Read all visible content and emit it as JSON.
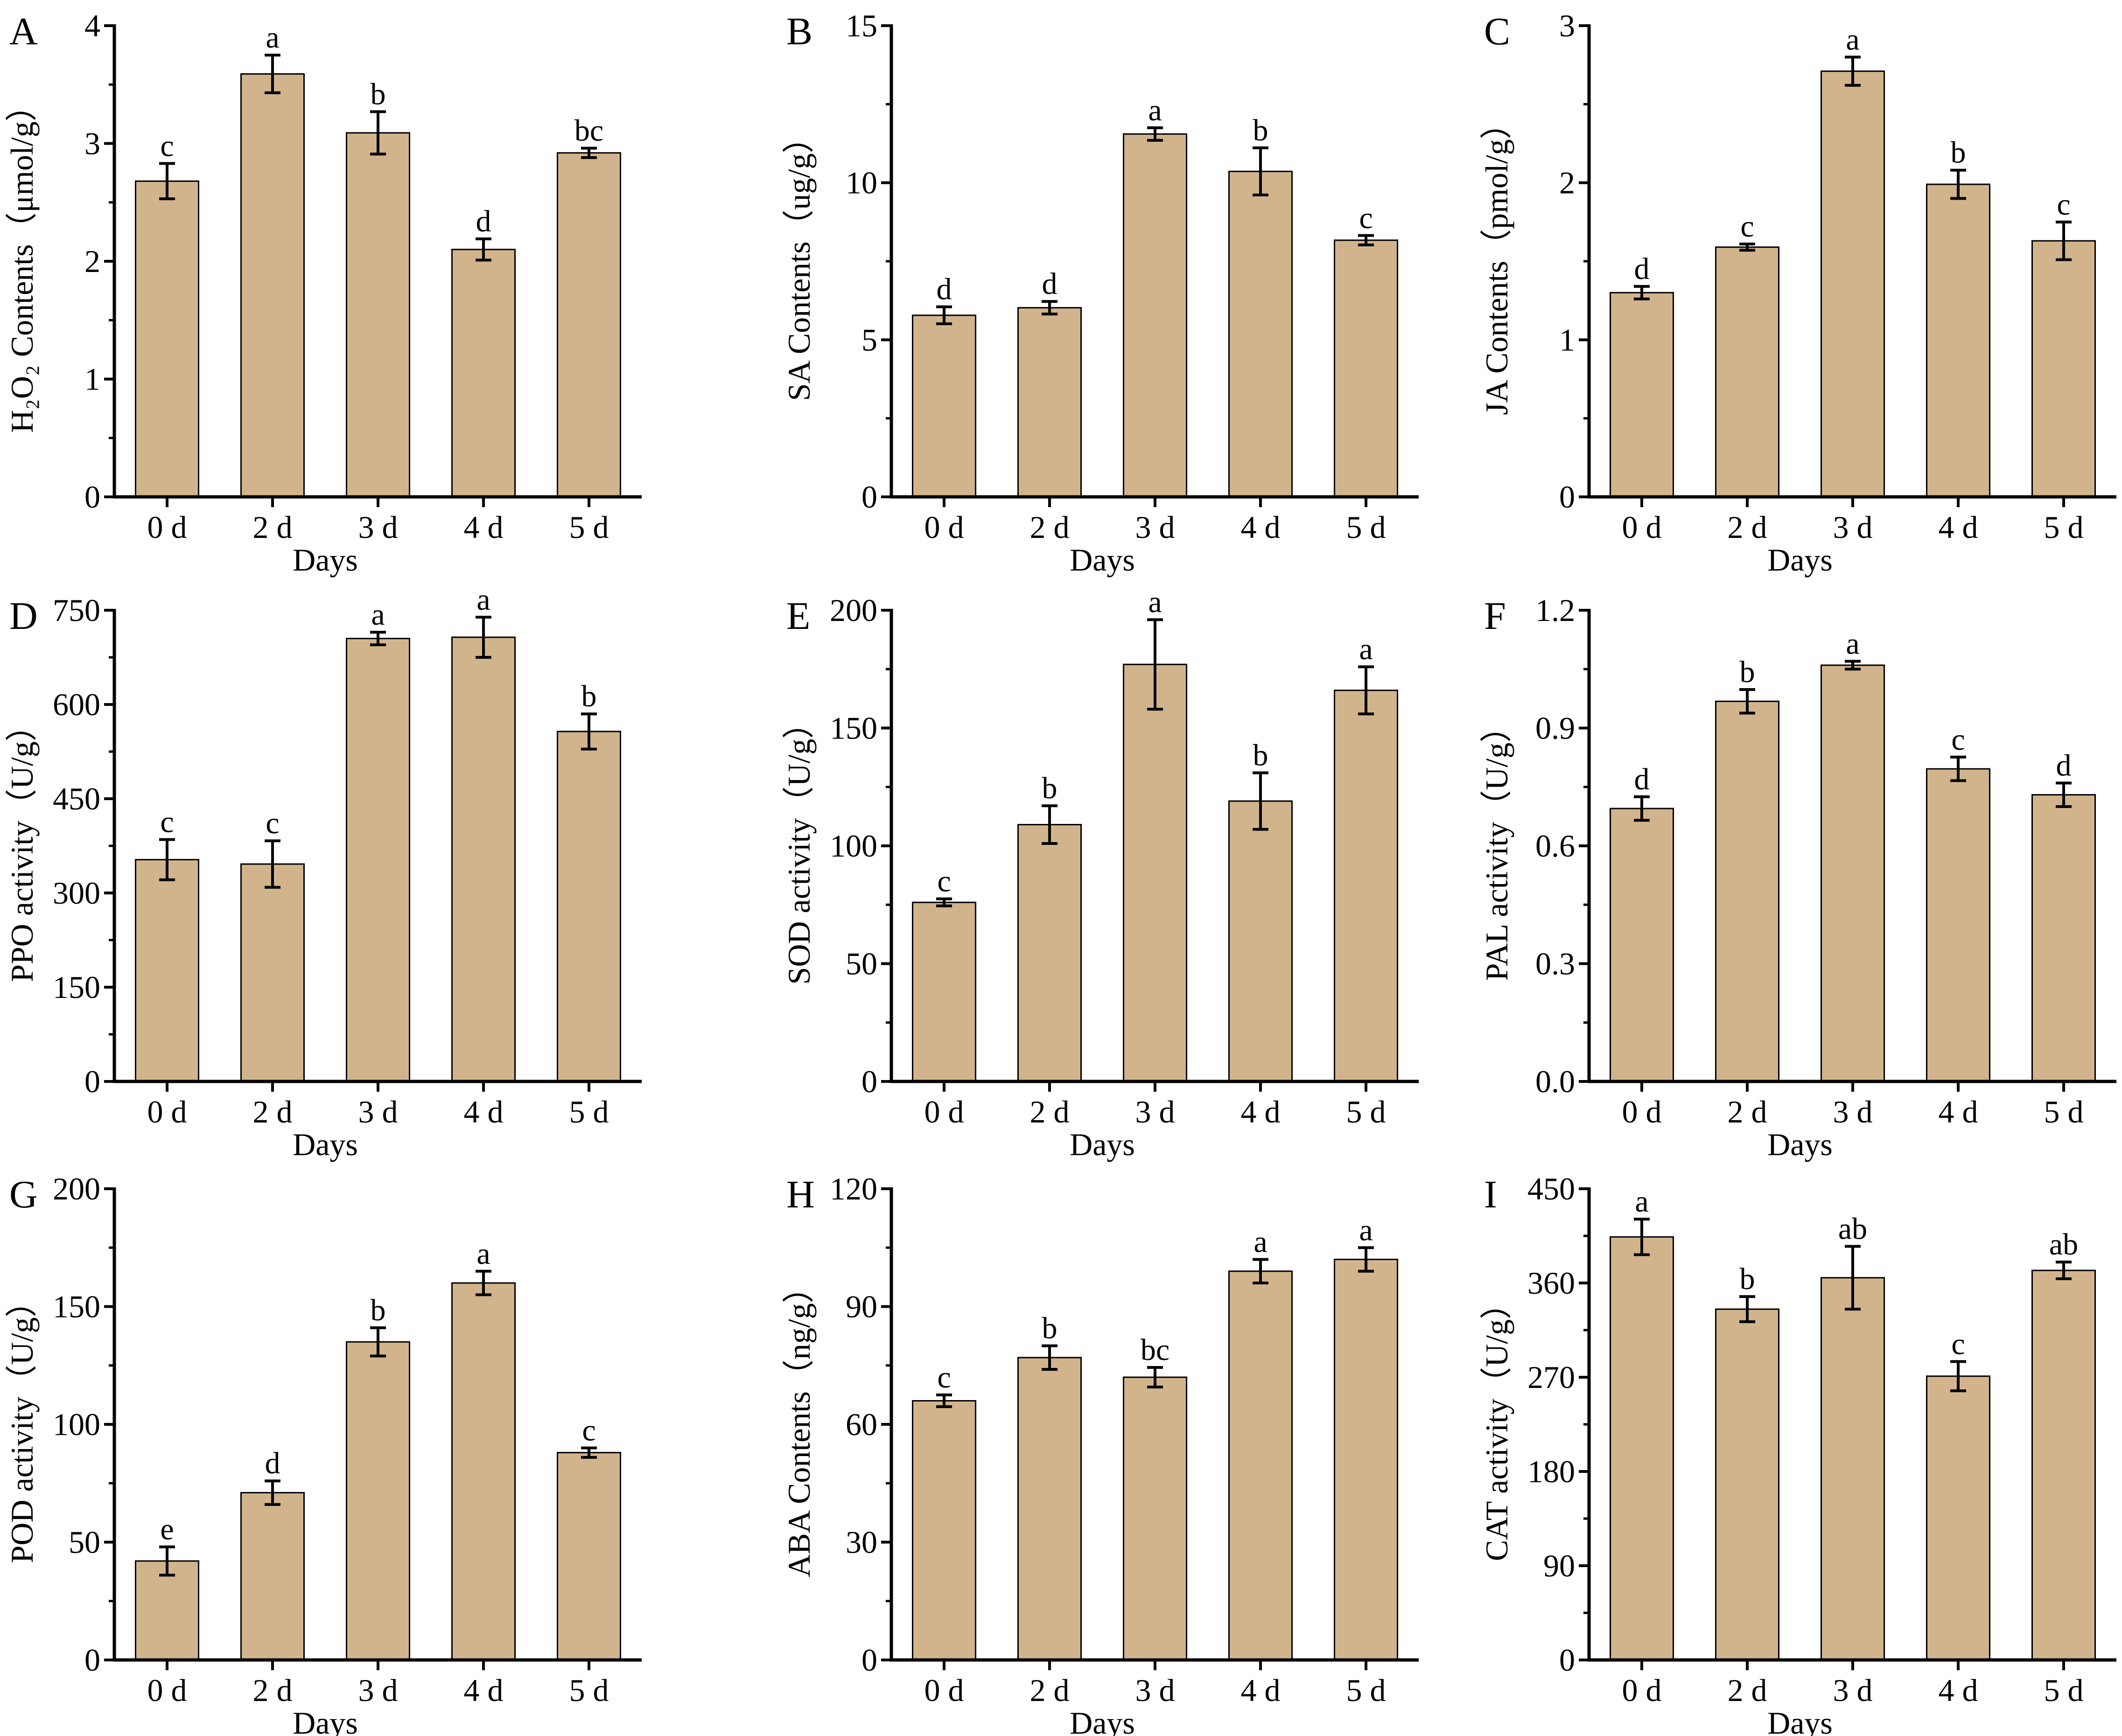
{
  "figure": {
    "bar_color": "#d2b48c",
    "edge_color": "#000000",
    "xlabel": "Days",
    "categories": [
      "0 d",
      "2 d",
      "3 d",
      "4 d",
      "5 d"
    ]
  },
  "chart_data": [
    {
      "panel": "A",
      "type": "bar",
      "ylabel": "H₂O₂ Contents（μmol/g）",
      "xlabel": "Days",
      "categories": [
        "0 d",
        "2 d",
        "3 d",
        "4 d",
        "5 d"
      ],
      "values": [
        2.68,
        3.59,
        3.09,
        2.1,
        2.92
      ],
      "errors": [
        0.15,
        0.16,
        0.18,
        0.09,
        0.04
      ],
      "labels": [
        "c",
        "a",
        "b",
        "d",
        "bc"
      ],
      "ylim": [
        0,
        4
      ],
      "yticks": [
        "0",
        "1",
        "2",
        "3",
        "4"
      ]
    },
    {
      "panel": "B",
      "type": "bar",
      "ylabel": "SA Contents（ug/g）",
      "xlabel": "Days",
      "categories": [
        "0 d",
        "2 d",
        "3 d",
        "4 d",
        "5 d"
      ],
      "values": [
        5.78,
        6.02,
        11.55,
        10.36,
        8.17
      ],
      "errors": [
        0.27,
        0.2,
        0.2,
        0.75,
        0.15
      ],
      "labels": [
        "d",
        "d",
        "a",
        "b",
        "c"
      ],
      "ylim": [
        0,
        15
      ],
      "yticks": [
        "0",
        "5",
        "10",
        "15"
      ]
    },
    {
      "panel": "C",
      "type": "bar",
      "ylabel": "JA Contents（pmol/g）",
      "xlabel": "Days",
      "categories": [
        "0 d",
        "2 d",
        "3 d",
        "4 d",
        "5 d"
      ],
      "values": [
        1.3,
        1.59,
        2.71,
        1.99,
        1.63
      ],
      "errors": [
        0.04,
        0.02,
        0.09,
        0.09,
        0.12
      ],
      "labels": [
        "d",
        "c",
        "a",
        "b",
        "c"
      ],
      "ylim": [
        0,
        3
      ],
      "yticks": [
        "0",
        "1",
        "2",
        "3"
      ]
    },
    {
      "panel": "D",
      "type": "bar",
      "ylabel": "PPO activity（U/g）",
      "xlabel": "Days",
      "categories": [
        "0 d",
        "2 d",
        "3 d",
        "4 d",
        "5 d"
      ],
      "values": [
        353,
        346,
        705,
        707,
        557
      ],
      "errors": [
        32,
        37,
        10,
        32,
        28
      ],
      "labels": [
        "c",
        "c",
        "a",
        "a",
        "b"
      ],
      "ylim": [
        0,
        750
      ],
      "yticks": [
        "0",
        "150",
        "300",
        "450",
        "600",
        "750"
      ]
    },
    {
      "panel": "E",
      "type": "bar",
      "ylabel": "SOD activity（U/g）",
      "xlabel": "Days",
      "categories": [
        "0 d",
        "2 d",
        "3 d",
        "4 d",
        "5 d"
      ],
      "values": [
        76,
        109,
        177,
        119,
        166
      ],
      "errors": [
        1.5,
        8,
        19,
        12,
        10
      ],
      "labels": [
        "c",
        "b",
        "a",
        "b",
        "a"
      ],
      "ylim": [
        0,
        200
      ],
      "yticks": [
        "0",
        "50",
        "100",
        "150",
        "200"
      ]
    },
    {
      "panel": "F",
      "type": "bar",
      "ylabel": "PAL activity（U/g）",
      "xlabel": "Days",
      "categories": [
        "0 d",
        "2 d",
        "3 d",
        "4 d",
        "5 d"
      ],
      "values": [
        0.695,
        0.968,
        1.06,
        0.796,
        0.73
      ],
      "errors": [
        0.03,
        0.03,
        0.01,
        0.03,
        0.03
      ],
      "labels": [
        "d",
        "b",
        "a",
        "c",
        "d"
      ],
      "ylim": [
        0,
        1.2
      ],
      "yticks": [
        "0.0",
        "0.3",
        "0.6",
        "0.9",
        "1.2"
      ]
    },
    {
      "panel": "G",
      "type": "bar",
      "ylabel": "POD activity（U/g）",
      "xlabel": "Days",
      "categories": [
        "0 d",
        "2 d",
        "3 d",
        "4 d",
        "5 d"
      ],
      "values": [
        42,
        71,
        135,
        160,
        88
      ],
      "errors": [
        6,
        5,
        6,
        5,
        2
      ],
      "labels": [
        "e",
        "d",
        "b",
        "a",
        "c"
      ],
      "ylim": [
        0,
        200
      ],
      "yticks": [
        "0",
        "50",
        "100",
        "150",
        "200"
      ]
    },
    {
      "panel": "H",
      "type": "bar",
      "ylabel": "ABA Contents（ng/g）",
      "xlabel": "Days",
      "categories": [
        "0 d",
        "2 d",
        "3 d",
        "4 d",
        "5 d"
      ],
      "values": [
        66,
        77,
        72,
        99,
        102
      ],
      "errors": [
        1.5,
        3,
        2.5,
        3,
        3
      ],
      "labels": [
        "c",
        "b",
        "bc",
        "a",
        "a"
      ],
      "ylim": [
        0,
        120
      ],
      "yticks": [
        "0",
        "30",
        "60",
        "90",
        "120"
      ]
    },
    {
      "panel": "I",
      "type": "bar",
      "ylabel": "CAT activity（U/g）",
      "xlabel": "Days",
      "categories": [
        "0 d",
        "2 d",
        "3 d",
        "4 d",
        "5 d"
      ],
      "values": [
        404,
        335,
        365,
        271,
        372
      ],
      "errors": [
        17,
        12,
        30,
        14,
        8
      ],
      "labels": [
        "a",
        "b",
        "ab",
        "c",
        "ab"
      ],
      "ylim": [
        0,
        450
      ],
      "yticks": [
        "0",
        "90",
        "180",
        "270",
        "360",
        "450"
      ]
    }
  ]
}
